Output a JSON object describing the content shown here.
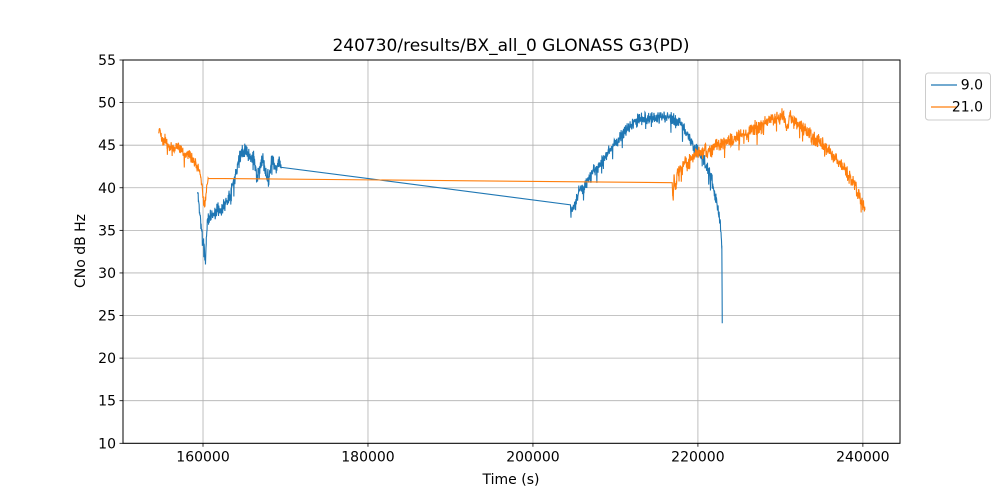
{
  "chart_data": {
    "type": "line",
    "title": "240730/results/BX_all_0 GLONASS G3(PD)",
    "xlabel": "Time (s)",
    "ylabel": "CNo dB Hz",
    "xlim": [
      150300,
      244500
    ],
    "ylim": [
      10,
      55
    ],
    "xticks": [
      160000,
      180000,
      200000,
      220000,
      240000
    ],
    "yticks": [
      10,
      15,
      20,
      25,
      30,
      35,
      40,
      45,
      50,
      55
    ],
    "grid": true,
    "grid_color": "#b0b0b0",
    "legend_position": "outside-top-right",
    "series": [
      {
        "name": "9.0",
        "color": "#1f77b4",
        "segments": [
          {
            "noise": 1.0,
            "seed": 11,
            "points": [
              [
                159350,
                39.5
              ],
              [
                159500,
                38.2
              ],
              [
                159650,
                36.8
              ],
              [
                159800,
                35.2
              ],
              [
                159950,
                33.8
              ],
              [
                160150,
                33.2
              ],
              [
                160300,
                31.0
              ],
              [
                160400,
                34.2
              ],
              [
                160550,
                36.2
              ],
              [
                160800,
                36.6
              ],
              [
                161200,
                36.9
              ],
              [
                161700,
                37.3
              ],
              [
                162200,
                37.6
              ],
              [
                162700,
                38.1
              ],
              [
                163100,
                38.9
              ],
              [
                163500,
                40.1
              ],
              [
                163900,
                41.6
              ],
              [
                164300,
                43.0
              ],
              [
                164700,
                44.2
              ],
              [
                165000,
                44.6
              ],
              [
                165400,
                44.2
              ],
              [
                165800,
                43.3
              ],
              [
                166100,
                43.9
              ],
              [
                166550,
                41.0
              ],
              [
                166900,
                42.4
              ],
              [
                167200,
                43.3
              ],
              [
                167600,
                42.0
              ],
              [
                167950,
                41.3
              ],
              [
                168200,
                42.5
              ],
              [
                168450,
                43.5
              ],
              [
                168700,
                42.2
              ],
              [
                168950,
                42.0
              ],
              [
                169200,
                43.3
              ],
              [
                169500,
                42.4
              ]
            ]
          },
          {
            "noise": 0.9,
            "seed": 12,
            "points": [
              [
                204550,
                38.0
              ],
              [
                204650,
                37.2
              ],
              [
                204900,
                38.0
              ],
              [
                205200,
                38.6
              ],
              [
                205500,
                39.3
              ],
              [
                205800,
                40.2
              ],
              [
                206100,
                39.9
              ],
              [
                206500,
                40.6
              ],
              [
                206900,
                41.3
              ],
              [
                207300,
                41.9
              ],
              [
                207800,
                42.4
              ],
              [
                208300,
                43.0
              ],
              [
                208800,
                43.7
              ],
              [
                209300,
                44.3
              ],
              [
                209800,
                45.0
              ],
              [
                210300,
                45.6
              ],
              [
                210800,
                46.2
              ],
              [
                211300,
                46.8
              ],
              [
                211800,
                47.3
              ],
              [
                212300,
                47.7
              ],
              [
                212800,
                48.0
              ],
              [
                213400,
                48.2
              ],
              [
                214000,
                48.3
              ],
              [
                214600,
                48.2
              ],
              [
                215200,
                48.4
              ],
              [
                215800,
                48.2
              ],
              [
                216400,
                48.4
              ],
              [
                217000,
                48.1
              ],
              [
                217600,
                47.8
              ],
              [
                218100,
                47.2
              ],
              [
                218600,
                46.4
              ],
              [
                219100,
                45.6
              ],
              [
                219600,
                45.0
              ],
              [
                220100,
                44.3
              ],
              [
                220600,
                43.5
              ],
              [
                221100,
                42.5
              ],
              [
                221600,
                41.2
              ],
              [
                222000,
                39.7
              ],
              [
                222300,
                38.2
              ],
              [
                222600,
                36.6
              ],
              [
                222800,
                34.8
              ],
              [
                222900,
                33.2
              ],
              [
                222950,
                24.1
              ]
            ]
          }
        ]
      },
      {
        "name": "21.0",
        "color": "#ff7f0e",
        "segments": [
          {
            "noise": 0.8,
            "seed": 21,
            "points": [
              [
                154600,
                46.4
              ],
              [
                154750,
                47.0
              ],
              [
                154950,
                45.9
              ],
              [
                155150,
                45.2
              ],
              [
                155400,
                45.9
              ],
              [
                155650,
                45.2
              ],
              [
                155900,
                44.7
              ],
              [
                156200,
                45.0
              ],
              [
                156500,
                44.2
              ],
              [
                156800,
                44.8
              ],
              [
                157100,
                44.9
              ],
              [
                157400,
                44.3
              ],
              [
                157700,
                43.8
              ],
              [
                158000,
                44.1
              ],
              [
                158300,
                44.0
              ],
              [
                158600,
                43.5
              ],
              [
                158900,
                43.1
              ],
              [
                159200,
                42.7
              ],
              [
                159500,
                42.2
              ],
              [
                159750,
                41.2
              ],
              [
                159950,
                39.5
              ],
              [
                160180,
                37.7
              ],
              [
                160350,
                39.2
              ],
              [
                160500,
                40.4
              ],
              [
                160650,
                41.1
              ]
            ]
          },
          {
            "noise": 1.0,
            "seed": 22,
            "points": [
              [
                216880,
                40.6
              ],
              [
                216980,
                38.8
              ],
              [
                217120,
                41.5
              ],
              [
                217300,
                40.2
              ],
              [
                217500,
                41.9
              ],
              [
                217750,
                42.4
              ],
              [
                218050,
                42.1
              ],
              [
                218400,
                43.0
              ],
              [
                218800,
                42.9
              ],
              [
                219300,
                43.4
              ],
              [
                219800,
                44.2
              ],
              [
                220300,
                44.0
              ],
              [
                220800,
                44.3
              ],
              [
                221400,
                44.4
              ],
              [
                222100,
                44.8
              ],
              [
                222900,
                45.1
              ],
              [
                223700,
                45.4
              ],
              [
                224500,
                45.8
              ],
              [
                225300,
                46.2
              ],
              [
                226100,
                46.5
              ],
              [
                226900,
                47.0
              ],
              [
                227800,
                47.5
              ],
              [
                228700,
                47.9
              ],
              [
                229500,
                48.2
              ],
              [
                230100,
                48.4
              ],
              [
                230500,
                48.3
              ],
              [
                230800,
                46.9
              ],
              [
                231100,
                48.3
              ],
              [
                231600,
                47.9
              ],
              [
                232300,
                47.3
              ],
              [
                233100,
                46.7
              ],
              [
                233900,
                46.0
              ],
              [
                234700,
                45.3
              ],
              [
                235500,
                44.7
              ],
              [
                236300,
                43.9
              ],
              [
                237000,
                43.1
              ],
              [
                237700,
                42.3
              ],
              [
                238300,
                41.4
              ],
              [
                238900,
                40.5
              ],
              [
                239400,
                39.5
              ],
              [
                239800,
                38.6
              ],
              [
                240100,
                37.9
              ],
              [
                240250,
                37.4
              ]
            ]
          }
        ]
      }
    ]
  }
}
